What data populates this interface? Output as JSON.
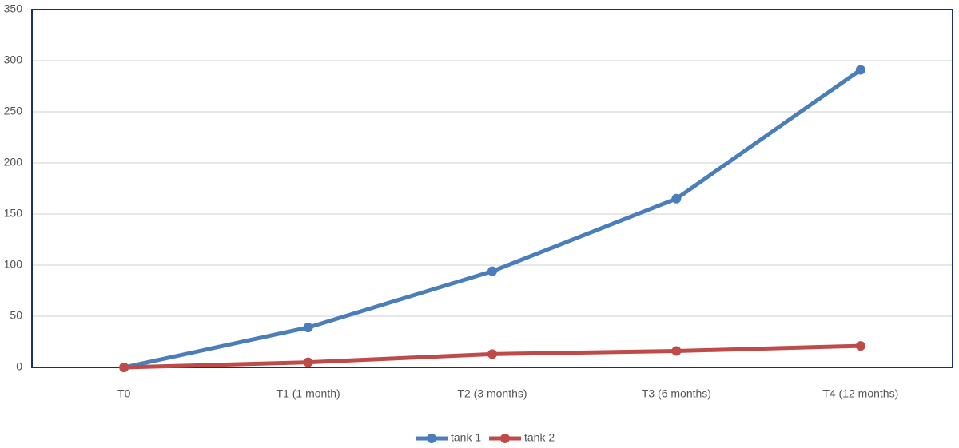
{
  "chart_data": {
    "type": "line",
    "categories": [
      "T0",
      "T1 (1 month)",
      "T2 (3 months)",
      "T3 (6 months)",
      "T4 (12 months)"
    ],
    "series": [
      {
        "name": "tank 1",
        "color": "#4a7ebb",
        "values": [
          0,
          39,
          94,
          165,
          291
        ]
      },
      {
        "name": "tank 2",
        "color": "#be4b48",
        "values": [
          0,
          5,
          13,
          16,
          21
        ]
      }
    ],
    "ylim": [
      0,
      350
    ],
    "yticks": [
      0,
      50,
      100,
      150,
      200,
      250,
      300,
      350
    ],
    "grid": true,
    "legend": "bottom"
  }
}
